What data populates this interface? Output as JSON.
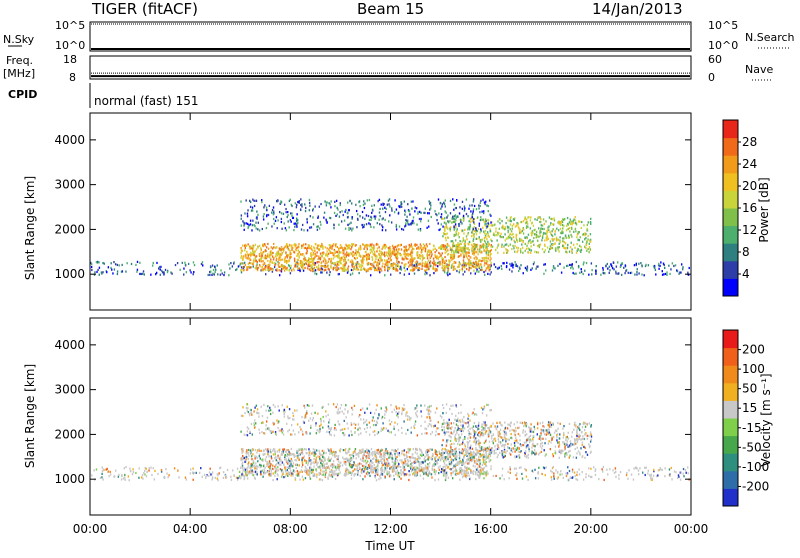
{
  "header": {
    "radar": "TIGER (fitACF)",
    "beam": "Beam 15",
    "date": "14/Jan/2013"
  },
  "status_panels": {
    "nsky_label": "N.Sky",
    "nsky_ticks": [
      "10^5",
      "10^0"
    ],
    "nsearch_label": "N.Search",
    "nsearch_ticks": [
      "10^5",
      "10^0"
    ],
    "freq_label": [
      "Freq.",
      "[MHz]"
    ],
    "freq_ticks": [
      "18",
      "8"
    ],
    "nave_label": "Nave",
    "nave_ticks": [
      "60",
      "0"
    ],
    "cpid_label": "CPID",
    "cpid_value": "normal (fast) 151",
    "freq_mhz": 8.9,
    "nave_value": 14
  },
  "chart_data": [
    {
      "type": "heatmap",
      "name": "power",
      "ylabel": "Slant Range [km]",
      "yticks": [
        1000,
        2000,
        3000,
        4000
      ],
      "ylim": [
        200,
        4600
      ],
      "xlim_hours": [
        0,
        24
      ],
      "colorbar": {
        "label": "Power [dB]",
        "ticks": [
          "28",
          "24",
          "20",
          "16",
          "12",
          "8",
          "4"
        ],
        "colors": [
          "#0000ff",
          "#2e3ea8",
          "#2e7f7f",
          "#4caf6e",
          "#7fbf4a",
          "#c8d43a",
          "#f0c020",
          "#f29a1a",
          "#f06a1a",
          "#e8261a"
        ]
      },
      "scatter_bands": [
        {
          "from_h": 0,
          "to_h": 24,
          "range_lo": 1000,
          "range_hi": 1300,
          "level": "weak"
        },
        {
          "from_h": 6,
          "to_h": 16,
          "range_lo": 1100,
          "range_hi": 1700,
          "level": "strong"
        },
        {
          "from_h": 14,
          "to_h": 20,
          "range_lo": 1500,
          "range_hi": 2300,
          "level": "medium"
        },
        {
          "from_h": 6,
          "to_h": 16,
          "range_lo": 2000,
          "range_hi": 2700,
          "level": "weak"
        }
      ]
    },
    {
      "type": "heatmap",
      "name": "velocity",
      "ylabel": "Slant Range [km]",
      "yticks": [
        1000,
        2000,
        3000,
        4000
      ],
      "ylim": [
        200,
        4600
      ],
      "xlabel": "Time UT",
      "xticks": [
        "00:00",
        "04:00",
        "08:00",
        "12:00",
        "16:00",
        "20:00",
        "00:00"
      ],
      "xlim_hours": [
        0,
        24
      ],
      "colorbar": {
        "label": "Velocity [m s⁻¹]",
        "ticks": [
          "200",
          "100",
          "50",
          "15",
          "-15",
          "-50",
          "-100",
          "-200"
        ],
        "colors": [
          "#2030c8",
          "#2e6ea8",
          "#2e8f7f",
          "#46a84a",
          "#7fcf4a",
          "#c8c8c8",
          "#f0b020",
          "#f08a1a",
          "#f0601a",
          "#e81a1a"
        ]
      }
    }
  ]
}
